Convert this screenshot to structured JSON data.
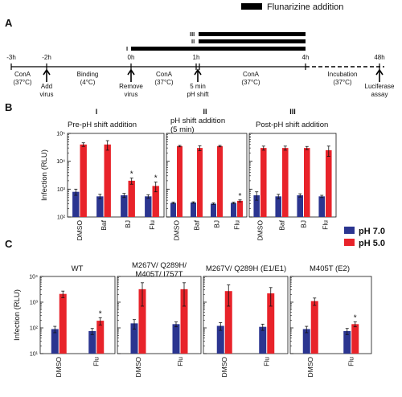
{
  "header": {
    "legend_label": "Flunarizine addition"
  },
  "panelA": {
    "letter": "A",
    "times": [
      "-3h",
      "-2h",
      "0h",
      "1h",
      "4h",
      "48h"
    ],
    "bar_marks": [
      "III",
      "II",
      "I"
    ],
    "steps": [
      {
        "top": "ConA",
        "bottom": "(37°C)"
      },
      {
        "top": "Binding",
        "bottom": "(4°C)"
      },
      {
        "top": "ConA",
        "bottom": "(37°C)"
      },
      {
        "top": "ConA",
        "bottom": "(37°C)"
      },
      {
        "top": "Incubation",
        "bottom": "(37°C)"
      }
    ],
    "arrows": [
      {
        "l1": "Add",
        "l2": "virus"
      },
      {
        "l1": "Remove",
        "l2": "virus"
      },
      {
        "l1": "5 min",
        "l2": "pH shift"
      },
      {
        "l1": "Luciferase",
        "l2": "assay"
      }
    ]
  },
  "legend": {
    "items": [
      {
        "label": "pH 7.0",
        "color": "#2b3590"
      },
      {
        "label": "pH 5.0",
        "color": "#e8232a"
      }
    ]
  },
  "chart_data": [
    {
      "type": "bar",
      "panel": "B",
      "roman": "I",
      "title": "Pre-pH shift addition",
      "ylabel": "Infection (RLU)",
      "yscale": "log",
      "ylim": [
        100,
        100000
      ],
      "yticks": [
        "10²",
        "10³",
        "10⁴",
        "10⁵"
      ],
      "categories": [
        "DMSO",
        "Baf",
        "BJ",
        "Flu"
      ],
      "series": [
        {
          "name": "pH 7.0",
          "values": [
            800,
            550,
            600,
            550
          ],
          "err": [
            200,
            100,
            100,
            80
          ]
        },
        {
          "name": "pH 5.0",
          "values": [
            40000,
            40000,
            2000,
            1300
          ],
          "err": [
            6000,
            15000,
            500,
            500
          ]
        }
      ],
      "stars": [
        2,
        3
      ]
    },
    {
      "type": "bar",
      "panel": "B",
      "roman": "II",
      "title": "pH shift addition",
      "subtitle": "(5 min)",
      "yscale": "log",
      "ylim": [
        100,
        100000
      ],
      "categories": [
        "DMSO",
        "Baf",
        "BJ",
        "Flu"
      ],
      "series": [
        {
          "name": "pH 7.0",
          "values": [
            320,
            330,
            300,
            320
          ],
          "err": [
            20,
            20,
            20,
            20
          ]
        },
        {
          "name": "pH 5.0",
          "values": [
            35000,
            30000,
            35000,
            380
          ],
          "err": [
            2000,
            6000,
            2000,
            30
          ]
        }
      ],
      "stars": [
        3
      ]
    },
    {
      "type": "bar",
      "panel": "B",
      "roman": "III",
      "title": "Post-pH shift addition",
      "yscale": "log",
      "ylim": [
        100,
        100000
      ],
      "categories": [
        "DMSO",
        "Baf",
        "BJ",
        "Flu"
      ],
      "series": [
        {
          "name": "pH 7.0",
          "values": [
            600,
            550,
            600,
            550
          ],
          "err": [
            200,
            100,
            80,
            50
          ]
        },
        {
          "name": "pH 5.0",
          "values": [
            30000,
            30000,
            30000,
            25000
          ],
          "err": [
            5000,
            5000,
            4000,
            10000
          ]
        }
      ],
      "stars": []
    },
    {
      "type": "bar",
      "panel": "C",
      "title": "WT",
      "ylabel": "Infection (RLU)",
      "yscale": "log",
      "ylim": [
        10,
        10000
      ],
      "yticks": [
        "10¹",
        "10²",
        "10³",
        "10⁴"
      ],
      "categories": [
        "DMSO",
        "Flu"
      ],
      "series": [
        {
          "name": "pH 7.0",
          "values": [
            90,
            75
          ],
          "err": [
            25,
            20
          ]
        },
        {
          "name": "pH 5.0",
          "values": [
            2100,
            190
          ],
          "err": [
            600,
            60
          ]
        }
      ],
      "stars": [
        1
      ]
    },
    {
      "type": "bar",
      "panel": "C",
      "title": "M267V/ Q289H/",
      "subtitle": "M405T/ I757T",
      "yscale": "log",
      "ylim": [
        10,
        10000
      ],
      "categories": [
        "DMSO",
        "Flu"
      ],
      "series": [
        {
          "name": "pH 7.0",
          "values": [
            150,
            140
          ],
          "err": [
            60,
            30
          ]
        },
        {
          "name": "pH 5.0",
          "values": [
            3200,
            3200
          ],
          "err": [
            2500,
            2500
          ]
        }
      ],
      "stars": []
    },
    {
      "type": "bar",
      "panel": "C",
      "title": "M267V/ Q289H (E1/E1)",
      "yscale": "log",
      "ylim": [
        10,
        10000
      ],
      "categories": [
        "DMSO",
        "Flu"
      ],
      "series": [
        {
          "name": "pH 7.0",
          "values": [
            120,
            110
          ],
          "err": [
            40,
            30
          ]
        },
        {
          "name": "pH 5.0",
          "values": [
            2700,
            2200
          ],
          "err": [
            2000,
            1500
          ]
        }
      ],
      "stars": []
    },
    {
      "type": "bar",
      "panel": "C",
      "title": "M405T (E2)",
      "yscale": "log",
      "ylim": [
        10,
        10000
      ],
      "categories": [
        "DMSO",
        "Flu"
      ],
      "series": [
        {
          "name": "pH 7.0",
          "values": [
            90,
            75
          ],
          "err": [
            25,
            20
          ]
        },
        {
          "name": "pH 5.0",
          "values": [
            1100,
            140
          ],
          "err": [
            350,
            30
          ]
        }
      ],
      "stars": [
        1
      ]
    }
  ],
  "panel_letters": {
    "B": "B",
    "C": "C"
  }
}
